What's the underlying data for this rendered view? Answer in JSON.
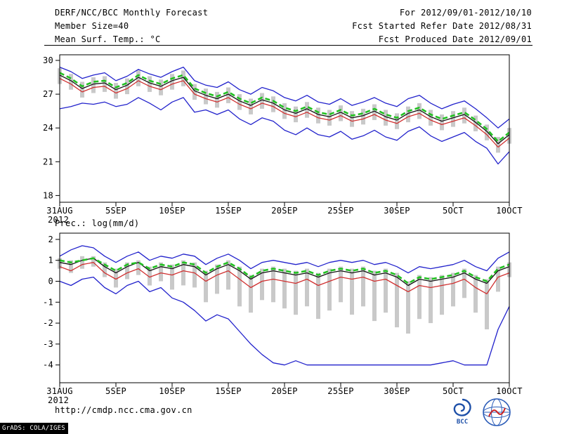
{
  "header": {
    "title": "DERF/NCC/BCC Monthly Forecast",
    "member_size": "Member Size=40",
    "for_period": "For 2012/09/01-2012/10/10",
    "refer_date": "Fcst Started Refer Date 2012/08/31",
    "produced_date": "Fcst Produced Date 2012/09/01"
  },
  "footer": {
    "url": "http://cmdp.ncc.cma.gov.cn",
    "grads_credit": "GrADS: COLA/IGES",
    "bcc_logo_text": "BCC"
  },
  "colors": {
    "blue": "#2222cc",
    "red": "#d03030",
    "green": "#22c022",
    "black": "#111111",
    "bar": "#c9c9c9"
  },
  "chart_data": [
    {
      "name": "mean-surf-temp",
      "type": "line",
      "title": "Mean Surf. Temp.: °C",
      "ylim": [
        17.4,
        30.5
      ],
      "yticks": [
        18,
        21,
        24,
        27,
        30
      ],
      "x_ticks": [
        {
          "day": 0,
          "label": "31AUG"
        },
        {
          "day": 5,
          "label": "5SEP"
        },
        {
          "day": 10,
          "label": "10SEP"
        },
        {
          "day": 15,
          "label": "15SEP"
        },
        {
          "day": 20,
          "label": "20SEP"
        },
        {
          "day": 25,
          "label": "25SEP"
        },
        {
          "day": 30,
          "label": "30SEP"
        },
        {
          "day": 35,
          "label": "5OCT"
        },
        {
          "day": 40,
          "label": "10OCT"
        }
      ],
      "x_sub_label": "2012",
      "bars": {
        "low": [
          27.9,
          27.4,
          26.7,
          27.1,
          27.2,
          26.6,
          27.0,
          27.7,
          27.2,
          26.9,
          27.4,
          27.7,
          26.5,
          26.1,
          25.8,
          26.2,
          25.6,
          25.2,
          25.7,
          25.4,
          24.8,
          24.5,
          24.9,
          24.4,
          24.2,
          24.6,
          24.1,
          24.3,
          24.7,
          24.2,
          23.9,
          24.5,
          24.8,
          24.2,
          23.8,
          24.1,
          24.4,
          23.7,
          22.9,
          21.8,
          22.6
        ],
        "high": [
          29.3,
          28.8,
          28.1,
          28.5,
          28.6,
          28.0,
          28.4,
          29.1,
          28.6,
          28.3,
          28.8,
          29.1,
          27.9,
          27.5,
          27.2,
          27.6,
          27.0,
          26.6,
          27.1,
          26.8,
          26.2,
          25.9,
          26.3,
          25.8,
          25.6,
          26.0,
          25.5,
          25.7,
          26.1,
          25.6,
          25.3,
          25.9,
          26.2,
          25.6,
          25.2,
          25.5,
          25.8,
          25.1,
          24.3,
          23.2,
          24.0
        ]
      },
      "series": [
        {
          "name": "blue-upper",
          "color": "blue",
          "values": [
            29.4,
            29.0,
            28.4,
            28.7,
            28.9,
            28.2,
            28.6,
            29.2,
            28.8,
            28.5,
            29.0,
            29.4,
            28.2,
            27.8,
            27.6,
            28.1,
            27.4,
            27.0,
            27.6,
            27.3,
            26.7,
            26.4,
            26.9,
            26.3,
            26.1,
            26.6,
            26.0,
            26.3,
            26.7,
            26.2,
            25.9,
            26.6,
            26.9,
            26.2,
            25.7,
            26.1,
            26.4,
            25.7,
            24.9,
            24.0,
            24.8
          ]
        },
        {
          "name": "blue-lower",
          "color": "blue",
          "values": [
            25.7,
            25.9,
            26.2,
            26.1,
            26.3,
            25.9,
            26.1,
            26.7,
            26.2,
            25.6,
            26.3,
            26.7,
            25.4,
            25.6,
            25.2,
            25.6,
            24.8,
            24.3,
            24.9,
            24.6,
            23.8,
            23.4,
            24.0,
            23.4,
            23.2,
            23.7,
            23.0,
            23.3,
            23.8,
            23.2,
            22.9,
            23.7,
            24.1,
            23.3,
            22.8,
            23.2,
            23.6,
            22.8,
            22.2,
            20.8,
            21.9
          ]
        },
        {
          "name": "red-line",
          "color": "red",
          "values": [
            28.4,
            27.9,
            27.2,
            27.6,
            27.7,
            27.1,
            27.5,
            28.2,
            27.7,
            27.4,
            27.9,
            28.2,
            27.0,
            26.6,
            26.3,
            26.7,
            26.1,
            25.7,
            26.2,
            25.9,
            25.3,
            25.0,
            25.4,
            24.9,
            24.7,
            25.1,
            24.6,
            24.8,
            25.2,
            24.7,
            24.4,
            25.0,
            25.3,
            24.7,
            24.3,
            24.6,
            24.9,
            24.2,
            23.4,
            22.3,
            23.1
          ]
        },
        {
          "name": "black-mean",
          "color": "black",
          "values": [
            28.7,
            28.2,
            27.5,
            27.9,
            28.0,
            27.4,
            27.8,
            28.5,
            28.0,
            27.7,
            28.2,
            28.5,
            27.3,
            26.9,
            26.6,
            27.0,
            26.4,
            26.0,
            26.5,
            26.2,
            25.6,
            25.3,
            25.7,
            25.2,
            25.0,
            25.4,
            24.9,
            25.1,
            25.5,
            25.0,
            24.7,
            25.3,
            25.6,
            25.0,
            24.6,
            24.9,
            25.2,
            24.5,
            23.7,
            22.6,
            23.4
          ]
        },
        {
          "name": "green-dashed",
          "color": "green",
          "dash": true,
          "width": 2.6,
          "values": [
            28.9,
            28.4,
            27.7,
            28.1,
            28.2,
            27.6,
            28.0,
            28.7,
            28.2,
            27.9,
            28.4,
            28.7,
            27.5,
            27.1,
            26.8,
            27.2,
            26.6,
            26.2,
            26.7,
            26.4,
            25.8,
            25.5,
            25.9,
            25.4,
            25.2,
            25.6,
            25.1,
            25.3,
            25.7,
            25.2,
            24.9,
            25.5,
            25.8,
            25.2,
            24.8,
            25.1,
            25.4,
            24.7,
            23.9,
            22.8,
            23.6
          ]
        }
      ]
    },
    {
      "name": "precipitation",
      "type": "line",
      "title": "Prec.: log(mm/d)",
      "ylim": [
        -4.85,
        2.3
      ],
      "yticks": [
        -4,
        -3,
        -2,
        -1,
        0,
        1,
        2
      ],
      "x_ticks": [
        {
          "day": 0,
          "label": "31AUG"
        },
        {
          "day": 5,
          "label": "5SEP"
        },
        {
          "day": 10,
          "label": "10SEP"
        },
        {
          "day": 15,
          "label": "15SEP"
        },
        {
          "day": 20,
          "label": "20SEP"
        },
        {
          "day": 25,
          "label": "25SEP"
        },
        {
          "day": 30,
          "label": "30SEP"
        },
        {
          "day": 35,
          "label": "5OCT"
        },
        {
          "day": 40,
          "label": "10OCT"
        }
      ],
      "x_sub_label": "2012",
      "bars": {
        "low": [
          0.6,
          0.4,
          0.6,
          0.7,
          0.2,
          -0.3,
          0.1,
          0.3,
          -0.2,
          0.0,
          -0.4,
          -0.2,
          -0.3,
          -1.0,
          -0.6,
          -0.4,
          -1.2,
          -1.5,
          -0.9,
          -1.0,
          -1.3,
          -1.6,
          -1.2,
          -1.8,
          -1.4,
          -1.0,
          -1.6,
          -1.2,
          -1.9,
          -1.5,
          -2.2,
          -2.5,
          -1.8,
          -2.0,
          -1.6,
          -1.2,
          -0.8,
          -1.5,
          -2.3,
          -0.5,
          0.2
        ],
        "high": [
          1.1,
          1.0,
          1.2,
          1.2,
          0.9,
          0.6,
          0.9,
          1.0,
          0.7,
          0.9,
          0.8,
          1.0,
          0.9,
          0.5,
          0.8,
          1.0,
          0.7,
          0.3,
          0.6,
          0.7,
          0.6,
          0.5,
          0.6,
          0.4,
          0.6,
          0.7,
          0.6,
          0.7,
          0.5,
          0.6,
          0.4,
          0.0,
          0.3,
          0.2,
          0.3,
          0.4,
          0.6,
          0.3,
          0.1,
          0.7,
          0.9
        ]
      },
      "series": [
        {
          "name": "blue-upper",
          "color": "blue",
          "values": [
            1.2,
            1.5,
            1.7,
            1.6,
            1.2,
            0.9,
            1.2,
            1.4,
            1.0,
            1.2,
            1.1,
            1.3,
            1.2,
            0.8,
            1.1,
            1.3,
            1.0,
            0.6,
            0.9,
            1.0,
            0.9,
            0.8,
            0.9,
            0.7,
            0.9,
            1.0,
            0.9,
            1.0,
            0.8,
            0.9,
            0.7,
            0.4,
            0.7,
            0.6,
            0.7,
            0.8,
            1.0,
            0.7,
            0.5,
            1.1,
            1.4
          ]
        },
        {
          "name": "blue-lower",
          "color": "blue",
          "values": [
            0.0,
            -0.2,
            0.1,
            0.2,
            -0.3,
            -0.6,
            -0.2,
            0.0,
            -0.5,
            -0.3,
            -0.8,
            -1.0,
            -1.4,
            -1.9,
            -1.6,
            -1.8,
            -2.4,
            -3.0,
            -3.5,
            -3.9,
            -4.0,
            -3.8,
            -4.0,
            -4.0,
            -4.0,
            -4.0,
            -4.0,
            -4.0,
            -4.0,
            -4.0,
            -4.0,
            -4.0,
            -4.0,
            -4.0,
            -3.9,
            -3.8,
            -4.0,
            -4.0,
            -4.0,
            -2.3,
            -1.2
          ]
        },
        {
          "name": "red-line",
          "color": "red",
          "values": [
            0.7,
            0.5,
            0.8,
            0.9,
            0.4,
            0.1,
            0.4,
            0.6,
            0.2,
            0.4,
            0.3,
            0.5,
            0.4,
            0.0,
            0.3,
            0.5,
            0.1,
            -0.3,
            0.0,
            0.1,
            0.0,
            -0.1,
            0.1,
            -0.2,
            0.0,
            0.2,
            0.1,
            0.2,
            0.0,
            0.1,
            -0.2,
            -0.5,
            -0.2,
            -0.3,
            -0.2,
            -0.1,
            0.1,
            -0.3,
            -0.6,
            0.2,
            0.4
          ]
        },
        {
          "name": "black-mean",
          "color": "black",
          "values": [
            0.9,
            0.8,
            1.0,
            1.1,
            0.7,
            0.4,
            0.7,
            0.9,
            0.5,
            0.7,
            0.6,
            0.8,
            0.7,
            0.3,
            0.6,
            0.8,
            0.5,
            0.1,
            0.4,
            0.5,
            0.4,
            0.3,
            0.4,
            0.2,
            0.4,
            0.5,
            0.4,
            0.5,
            0.3,
            0.4,
            0.2,
            -0.2,
            0.1,
            0.0,
            0.1,
            0.2,
            0.4,
            0.1,
            -0.1,
            0.5,
            0.7
          ]
        },
        {
          "name": "green-dashed",
          "color": "green",
          "dash": true,
          "width": 2.6,
          "values": [
            1.0,
            0.9,
            1.0,
            1.1,
            0.8,
            0.5,
            0.8,
            0.9,
            0.6,
            0.8,
            0.7,
            0.9,
            0.8,
            0.4,
            0.7,
            0.9,
            0.6,
            0.2,
            0.5,
            0.6,
            0.5,
            0.4,
            0.5,
            0.3,
            0.5,
            0.6,
            0.5,
            0.6,
            0.4,
            0.5,
            0.3,
            -0.1,
            0.2,
            0.1,
            0.2,
            0.3,
            0.5,
            0.2,
            0.0,
            0.6,
            0.8
          ]
        }
      ]
    }
  ]
}
